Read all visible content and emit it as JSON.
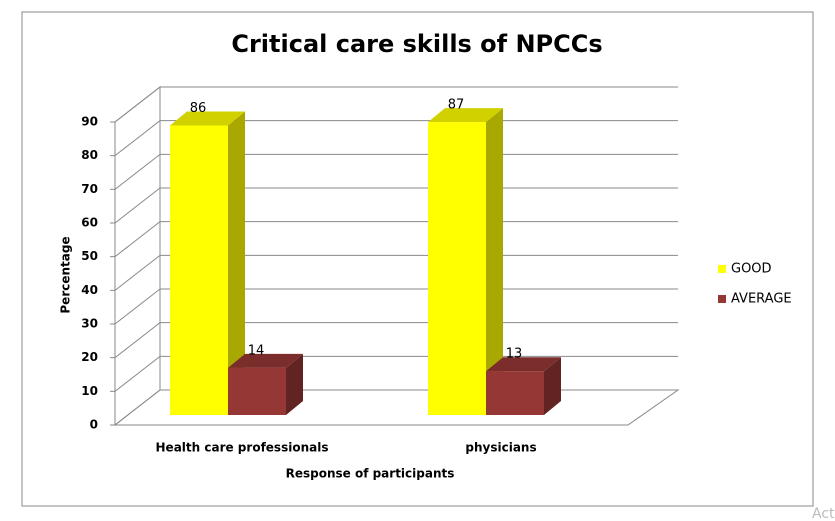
{
  "chart_data": {
    "type": "bar3d",
    "title": "Critical care skills of NPCCs",
    "x_label": "Response of participants",
    "y_label": "Percentage",
    "categories": [
      "Health care professionals",
      "physicians"
    ],
    "series": [
      {
        "name": "GOOD",
        "color": "#ffff00",
        "values": [
          86,
          87
        ]
      },
      {
        "name": "AVERAGE",
        "color": "#953735",
        "values": [
          14,
          13
        ]
      }
    ],
    "ylim": [
      0,
      90
    ],
    "yticks": [
      0,
      10,
      20,
      30,
      40,
      50,
      60,
      70,
      80,
      90
    ],
    "grid": true,
    "legend": "right"
  },
  "watermark": "Act"
}
